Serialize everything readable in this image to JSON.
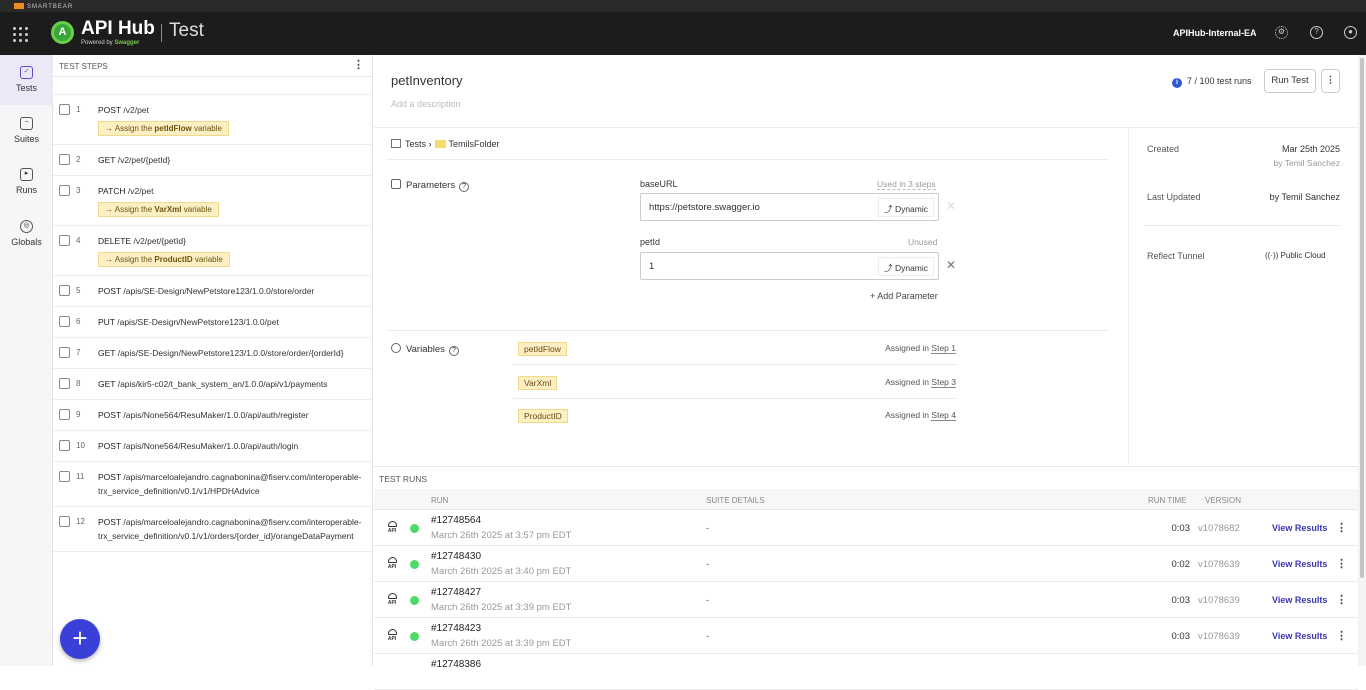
{
  "header": {
    "smartbear": "SMARTBEAR",
    "brand": "API Hub",
    "powered_by": "Powered by",
    "swagger": "Swagger",
    "product": "Test",
    "org": "APIHub-Internal-EA",
    "logo_letter": "A"
  },
  "nav": [
    {
      "label": "Tests",
      "icon": "tests-icon",
      "active": true
    },
    {
      "label": "Suites",
      "icon": "suites-icon"
    },
    {
      "label": "Runs",
      "icon": "runs-icon"
    },
    {
      "label": "Globals",
      "icon": "globe-icon"
    }
  ],
  "steps": {
    "title": "TEST STEPS",
    "items": [
      {
        "num": "1",
        "method": "POST",
        "path": "/v2/pet",
        "assign": {
          "pre": "→ Assign the",
          "var": "petIdFlow",
          "post": "variable"
        }
      },
      {
        "num": "2",
        "method": "GET",
        "path": "/v2/pet/{petId}"
      },
      {
        "num": "3",
        "method": "PATCH",
        "path": "/v2/pet",
        "assign": {
          "pre": "→ Assign the",
          "var": "VarXml",
          "post": "variable"
        }
      },
      {
        "num": "4",
        "method": "DELETE",
        "path": "/v2/pet/{petId}",
        "assign": {
          "pre": "→ Assign the",
          "var": "ProductID",
          "post": "variable"
        }
      },
      {
        "num": "5",
        "method": "POST",
        "path": "/apis/SE-Design/NewPetstore123/1.0.0/store/order"
      },
      {
        "num": "6",
        "method": "PUT",
        "path": "/apis/SE-Design/NewPetstore123/1.0.0/pet"
      },
      {
        "num": "7",
        "method": "GET",
        "path": "/apis/SE-Design/NewPetstore123/1.0.0/store/order/{orderId}"
      },
      {
        "num": "8",
        "method": "GET",
        "path": "/apis/kir5-c02/t_bank_system_an/1.0.0/api/v1/payments"
      },
      {
        "num": "9",
        "method": "POST",
        "path": "/apis/None564/ResuMaker/1.0.0/api/auth/register"
      },
      {
        "num": "10",
        "method": "POST",
        "path": "/apis/None564/ResuMaker/1.0.0/api/auth/login"
      },
      {
        "num": "11",
        "method": "POST",
        "path": "/apis/marceloalejandro.cagnabonina@fiserv.com/interoperable-trx_service_definition/v0.1/v1/HPDHAdvice"
      },
      {
        "num": "12",
        "method": "POST",
        "path": "/apis/marceloalejandro.cagnabonina@fiserv.com/interoperable-trx_service_definition/v0.1/v1/orders/{order_id}/orangeDataPayment"
      }
    ],
    "add_button": "+"
  },
  "main": {
    "title": "petInventory",
    "description_placeholder": "Add a description",
    "runs_count": "7 / 100 test runs",
    "run_test": "Run Test",
    "breadcrumb": {
      "root": "Tests",
      "sep": "›",
      "folder": "TemilsFolder"
    },
    "parameters": {
      "label": "Parameters",
      "add": "+ Add Parameter",
      "items": [
        {
          "name": "baseURL",
          "usage": "Used in 3 steps",
          "value": "https://petstore.swagger.io",
          "mode": "Dynamic"
        },
        {
          "name": "petId",
          "usage": "Unused",
          "value": "1",
          "mode": "Dynamic"
        }
      ]
    },
    "variables": {
      "label": "Variables",
      "items": [
        {
          "name": "petIdFlow",
          "assigned": "Assigned in",
          "step": "Step 1"
        },
        {
          "name": "VarXml",
          "assigned": "Assigned in",
          "step": "Step 3"
        },
        {
          "name": "ProductID",
          "assigned": "Assigned in",
          "step": "Step 4"
        }
      ]
    }
  },
  "info": {
    "created_label": "Created",
    "created_date": "Mar 25th 2025",
    "created_by": "by Temil Sanchez",
    "updated_label": "Last Updated",
    "updated_by": "by Temil Sanchez",
    "tunnel_label": "Reflect Tunnel",
    "tunnel_value": "Public Cloud"
  },
  "runs": {
    "title": "TEST RUNS",
    "columns": {
      "run": "RUN",
      "suite": "SUITE DETAILS",
      "time": "RUN TIME",
      "version": "VERSION"
    },
    "view": "View Results",
    "status_color": "#4cd964",
    "items": [
      {
        "id": "#12748564",
        "date": "March 26th 2025 at 3:57 pm EDT",
        "suite": "-",
        "time": "0:03",
        "version": "v1078682"
      },
      {
        "id": "#12748430",
        "date": "March 26th 2025 at 3:40 pm EDT",
        "suite": "-",
        "time": "0:02",
        "version": "v1078639"
      },
      {
        "id": "#12748427",
        "date": "March 26th 2025 at 3:39 pm EDT",
        "suite": "-",
        "time": "0:03",
        "version": "v1078639"
      },
      {
        "id": "#12748423",
        "date": "March 26th 2025 at 3:39 pm EDT",
        "suite": "-",
        "time": "0:03",
        "version": "v1078639"
      },
      {
        "id": "#12748386"
      }
    ]
  }
}
